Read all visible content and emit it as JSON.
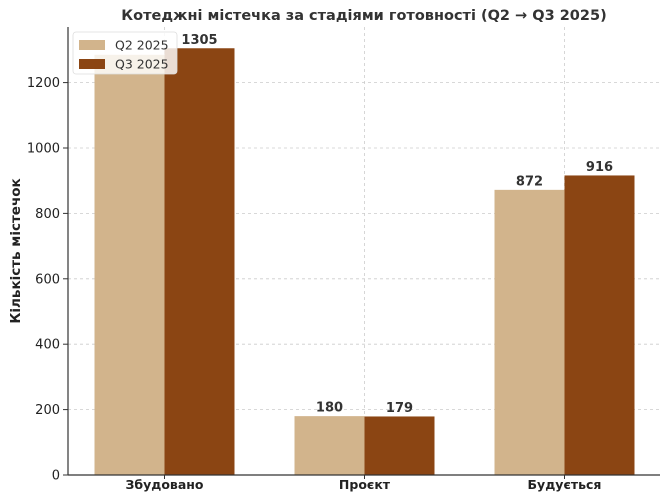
{
  "chart_data": {
    "type": "bar",
    "title": "Котеджні містечка за стадіями готовності (Q2 → Q3 2025)",
    "xlabel": "",
    "ylabel": "Кількість містечок",
    "categories": [
      "Збудовано",
      "Проєкт",
      "Будується"
    ],
    "series": [
      {
        "name": "Q2 2025",
        "values": [
          1285,
          180,
          872
        ],
        "color": "#D2B48C"
      },
      {
        "name": "Q3 2025",
        "values": [
          1305,
          179,
          916
        ],
        "color": "#8B4513"
      }
    ],
    "data_labels": [
      [
        "",
        "180",
        "872"
      ],
      [
        "1305",
        "179",
        "916"
      ]
    ],
    "ylim": [
      0,
      1370
    ],
    "yticks": [
      0,
      200,
      400,
      600,
      800,
      1000,
      1200
    ],
    "grid": true,
    "legend": "top-left"
  }
}
